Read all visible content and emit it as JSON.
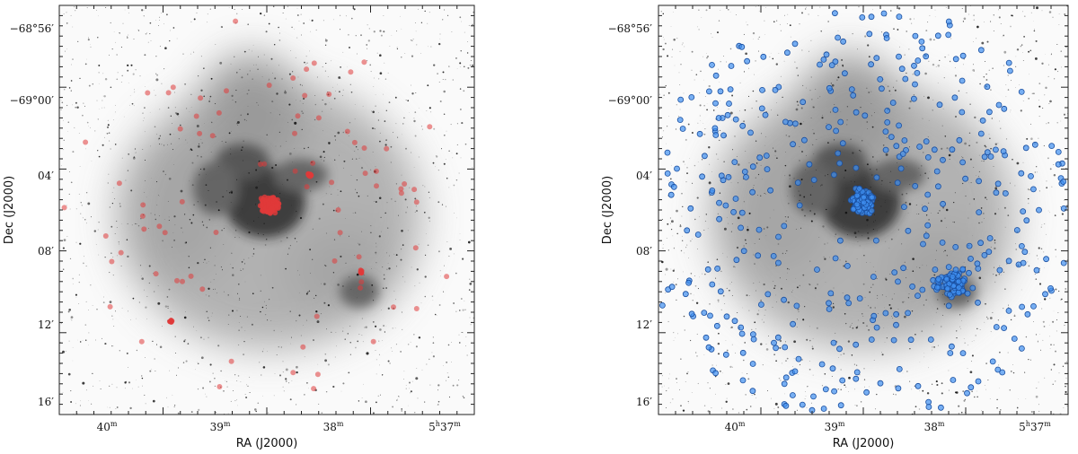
{
  "figure": {
    "panels": [
      {
        "id": "left",
        "xlabel": "RA (J2000)",
        "ylabel": "Dec (J2000)",
        "xticks": [
          {
            "main": "40",
            "sup": "m"
          },
          {
            "main": "39",
            "sup": "m"
          },
          {
            "main": "38",
            "sup": "m"
          },
          {
            "main": "5",
            "sup": "h",
            "main2": "37",
            "sup2": "m"
          }
        ],
        "yticks": [
          "−68°56′",
          "−69°00′",
          "04′",
          "08′",
          "12′",
          "16′"
        ],
        "marker_color": "#e03a3a",
        "marker_label": "red sources"
      },
      {
        "id": "right",
        "xlabel": "RA (J2000)",
        "ylabel": "Dec (J2000)",
        "xticks": [
          {
            "main": "40",
            "sup": "m"
          },
          {
            "main": "39",
            "sup": "m"
          },
          {
            "main": "38",
            "sup": "m"
          },
          {
            "main": "5",
            "sup": "h",
            "main2": "37",
            "sup2": "m"
          }
        ],
        "yticks": [
          "−68°56′",
          "−69°00′",
          "04′",
          "08′",
          "12′",
          "16′"
        ],
        "marker_color": "#3f8ff0",
        "marker_label": "blue sources"
      }
    ]
  },
  "chart_data": [
    {
      "type": "scatter",
      "title": "",
      "xlabel": "RA (J2000)",
      "ylabel": "Dec (J2000)",
      "xticks": [
        "40m",
        "39m",
        "38m",
        "5h37m"
      ],
      "yticks": [
        "−68°56′",
        "−69°00′",
        "04′",
        "08′",
        "12′",
        "16′"
      ],
      "series": [
        {
          "name": "red sources",
          "color": "#e03a3a"
        }
      ]
    },
    {
      "type": "scatter",
      "title": "",
      "xlabel": "RA (J2000)",
      "ylabel": "Dec (J2000)",
      "xticks": [
        "40m",
        "39m",
        "38m",
        "5h37m"
      ],
      "yticks": [
        "−68°56′",
        "−69°00′",
        "04′",
        "08′",
        "12′",
        "16′"
      ],
      "series": [
        {
          "name": "blue sources",
          "color": "#3f8ff0"
        }
      ]
    }
  ]
}
